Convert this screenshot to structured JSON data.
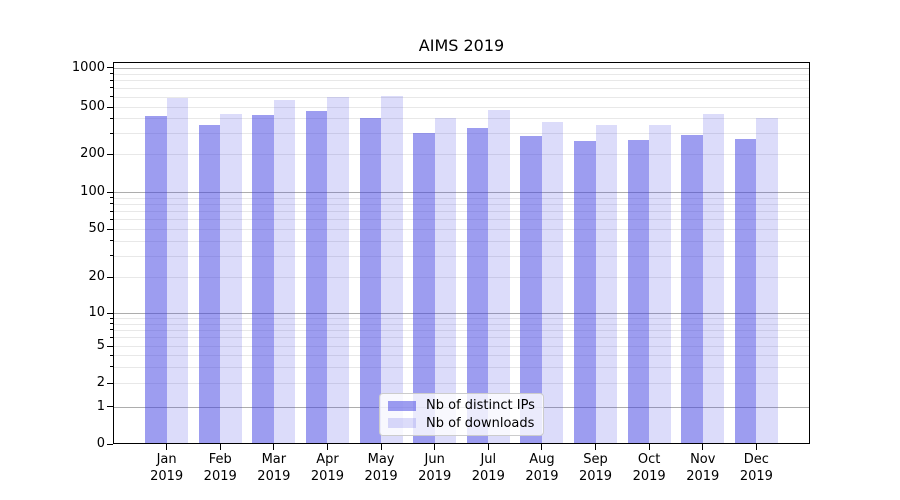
{
  "title": "AIMS 2019",
  "legend": {
    "items": [
      {
        "label": "Nb of distinct IPs",
        "color": "rgba(60,60,225,0.5)"
      },
      {
        "label": "Nb of downloads",
        "color": "rgba(60,60,225,0.18)"
      }
    ]
  },
  "colors": {
    "bar_distinct_ips": "rgba(60,60,225,0.5)",
    "bar_downloads": "rgba(60,60,225,0.18)",
    "grid_major": "#adadad",
    "grid_minor": "#e8e8e8",
    "axis_line": "#000000",
    "legend_border": "#cccccc"
  },
  "chart_data": {
    "type": "bar",
    "title": "AIMS 2019",
    "xlabel": "",
    "ylabel": "",
    "yscale": "symlog",
    "ylim": [
      0,
      1100
    ],
    "grid": true,
    "legend_position": "lower center",
    "yticks": [
      0,
      1,
      2,
      5,
      10,
      20,
      50,
      100,
      200,
      500,
      1000
    ],
    "categories": [
      {
        "month": "Jan",
        "year": "2019"
      },
      {
        "month": "Feb",
        "year": "2019"
      },
      {
        "month": "Mar",
        "year": "2019"
      },
      {
        "month": "Apr",
        "year": "2019"
      },
      {
        "month": "May",
        "year": "2019"
      },
      {
        "month": "Jun",
        "year": "2019"
      },
      {
        "month": "Jul",
        "year": "2019"
      },
      {
        "month": "Aug",
        "year": "2019"
      },
      {
        "month": "Sep",
        "year": "2019"
      },
      {
        "month": "Oct",
        "year": "2019"
      },
      {
        "month": "Nov",
        "year": "2019"
      },
      {
        "month": "Dec",
        "year": "2019"
      }
    ],
    "series": [
      {
        "name": "Nb of distinct IPs",
        "values": [
          420,
          350,
          430,
          465,
          405,
          300,
          335,
          285,
          257,
          263,
          290,
          268
        ]
      },
      {
        "name": "Nb of downloads",
        "values": [
          590,
          435,
          565,
          600,
          605,
          400,
          475,
          375,
          355,
          355,
          435,
          405
        ]
      }
    ]
  }
}
